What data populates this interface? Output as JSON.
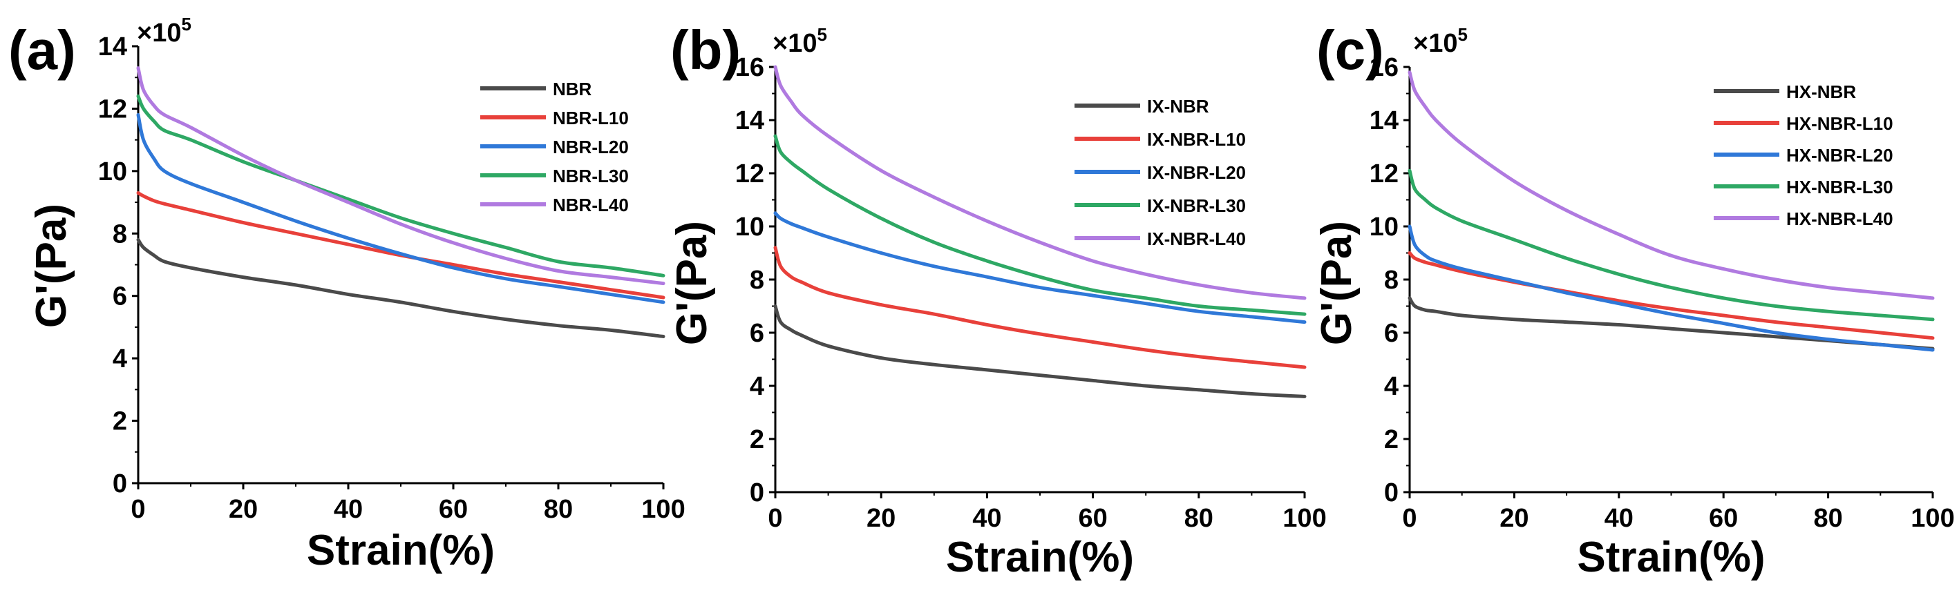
{
  "chart_data": [
    {
      "type": "line",
      "panel_label": "(a)",
      "multiplier": "×10",
      "multiplier_exp": "5",
      "xlabel": "Strain(%)",
      "ylabel": "G'(Pa)",
      "xlim": [
        0,
        100
      ],
      "ylim": [
        0,
        14
      ],
      "xticks": [
        0,
        20,
        40,
        60,
        80,
        100
      ],
      "yticks": [
        0,
        2,
        4,
        6,
        8,
        10,
        12,
        14
      ],
      "legend_position": "top-right",
      "series": [
        {
          "name": "NBR",
          "color": "#4a4a4a",
          "x": [
            0,
            1,
            3,
            5,
            10,
            20,
            30,
            40,
            50,
            60,
            70,
            80,
            90,
            100
          ],
          "y": [
            7.8,
            7.55,
            7.3,
            7.1,
            6.9,
            6.6,
            6.35,
            6.05,
            5.8,
            5.5,
            5.25,
            5.05,
            4.9,
            4.7
          ]
        },
        {
          "name": "NBR-L10",
          "color": "#e8403a",
          "x": [
            0,
            1,
            3,
            5,
            10,
            20,
            30,
            40,
            50,
            60,
            70,
            80,
            90,
            100
          ],
          "y": [
            9.3,
            9.2,
            9.05,
            8.95,
            8.75,
            8.35,
            8.0,
            7.65,
            7.3,
            7.0,
            6.7,
            6.45,
            6.2,
            5.95
          ]
        },
        {
          "name": "NBR-L20",
          "color": "#2f78d8",
          "x": [
            0,
            1,
            3,
            5,
            10,
            20,
            30,
            40,
            50,
            60,
            70,
            80,
            90,
            100
          ],
          "y": [
            11.8,
            11.0,
            10.4,
            10.0,
            9.6,
            9.0,
            8.4,
            7.85,
            7.35,
            6.9,
            6.55,
            6.3,
            6.05,
            5.8
          ]
        },
        {
          "name": "NBR-L30",
          "color": "#2ea864",
          "x": [
            0,
            1,
            3,
            5,
            10,
            20,
            30,
            40,
            50,
            60,
            70,
            80,
            90,
            100
          ],
          "y": [
            12.4,
            12.0,
            11.6,
            11.3,
            11.0,
            10.3,
            9.7,
            9.1,
            8.5,
            8.0,
            7.55,
            7.1,
            6.9,
            6.65
          ]
        },
        {
          "name": "NBR-L40",
          "color": "#b07ae0",
          "x": [
            0,
            1,
            3,
            5,
            10,
            20,
            30,
            40,
            50,
            60,
            70,
            80,
            90,
            100
          ],
          "y": [
            13.3,
            12.6,
            12.1,
            11.8,
            11.4,
            10.5,
            9.7,
            9.0,
            8.3,
            7.7,
            7.2,
            6.8,
            6.6,
            6.4
          ]
        }
      ]
    },
    {
      "type": "line",
      "panel_label": "(b)",
      "multiplier": "×10",
      "multiplier_exp": "5",
      "xlabel": "Strain(%)",
      "ylabel": "G'(Pa)",
      "xlim": [
        0,
        100
      ],
      "ylim": [
        0,
        16
      ],
      "xticks": [
        0,
        20,
        40,
        60,
        80,
        100
      ],
      "yticks": [
        0,
        2,
        4,
        6,
        8,
        10,
        12,
        14,
        16
      ],
      "legend_position": "top-right",
      "series": [
        {
          "name": "IX-NBR",
          "color": "#4a4a4a",
          "x": [
            0,
            1,
            3,
            5,
            10,
            20,
            30,
            40,
            50,
            60,
            70,
            80,
            90,
            100
          ],
          "y": [
            7.0,
            6.4,
            6.1,
            5.9,
            5.5,
            5.05,
            4.8,
            4.6,
            4.4,
            4.2,
            4.0,
            3.85,
            3.7,
            3.6
          ]
        },
        {
          "name": "IX-NBR-L10",
          "color": "#e8403a",
          "x": [
            0,
            1,
            3,
            5,
            10,
            20,
            30,
            40,
            50,
            60,
            70,
            80,
            90,
            100
          ],
          "y": [
            9.2,
            8.5,
            8.1,
            7.9,
            7.5,
            7.05,
            6.7,
            6.3,
            5.95,
            5.65,
            5.35,
            5.1,
            4.9,
            4.7
          ]
        },
        {
          "name": "IX-NBR-L20",
          "color": "#2f78d8",
          "x": [
            0,
            1,
            3,
            5,
            10,
            20,
            30,
            40,
            50,
            60,
            70,
            80,
            90,
            100
          ],
          "y": [
            10.5,
            10.3,
            10.1,
            9.95,
            9.6,
            9.0,
            8.5,
            8.1,
            7.7,
            7.4,
            7.1,
            6.8,
            6.6,
            6.4
          ]
        },
        {
          "name": "IX-NBR-L30",
          "color": "#2ea864",
          "x": [
            0,
            1,
            3,
            5,
            10,
            20,
            30,
            40,
            50,
            60,
            70,
            80,
            90,
            100
          ],
          "y": [
            13.4,
            12.8,
            12.4,
            12.1,
            11.4,
            10.3,
            9.4,
            8.7,
            8.1,
            7.6,
            7.3,
            7.0,
            6.85,
            6.7
          ]
        },
        {
          "name": "IX-NBR-L40",
          "color": "#b07ae0",
          "x": [
            0,
            1,
            3,
            5,
            10,
            20,
            30,
            40,
            50,
            60,
            70,
            80,
            90,
            100
          ],
          "y": [
            16.0,
            15.3,
            14.7,
            14.2,
            13.4,
            12.1,
            11.1,
            10.2,
            9.4,
            8.7,
            8.2,
            7.8,
            7.5,
            7.3
          ]
        }
      ]
    },
    {
      "type": "line",
      "panel_label": "(c)",
      "multiplier": "×10",
      "multiplier_exp": "5",
      "xlabel": "Strain(%)",
      "ylabel": "G'(Pa)",
      "xlim": [
        0,
        100
      ],
      "ylim": [
        0,
        16
      ],
      "xticks": [
        0,
        20,
        40,
        60,
        80,
        100
      ],
      "yticks": [
        0,
        2,
        4,
        6,
        8,
        10,
        12,
        14,
        16
      ],
      "legend_position": "top-right",
      "series": [
        {
          "name": "HX-NBR",
          "color": "#4a4a4a",
          "x": [
            0,
            1,
            3,
            5,
            10,
            20,
            30,
            40,
            50,
            60,
            70,
            80,
            90,
            100
          ],
          "y": [
            7.3,
            7.0,
            6.85,
            6.8,
            6.65,
            6.5,
            6.4,
            6.3,
            6.15,
            6.0,
            5.85,
            5.7,
            5.55,
            5.4
          ]
        },
        {
          "name": "HX-NBR-L10",
          "color": "#e8403a",
          "x": [
            0,
            1,
            3,
            5,
            10,
            20,
            30,
            40,
            50,
            60,
            70,
            80,
            90,
            100
          ],
          "y": [
            9.0,
            8.8,
            8.65,
            8.55,
            8.3,
            7.9,
            7.55,
            7.2,
            6.9,
            6.65,
            6.4,
            6.2,
            6.0,
            5.8
          ]
        },
        {
          "name": "HX-NBR-L20",
          "color": "#2f78d8",
          "x": [
            0,
            1,
            3,
            5,
            10,
            20,
            30,
            40,
            50,
            60,
            70,
            80,
            90,
            100
          ],
          "y": [
            10.0,
            9.3,
            8.9,
            8.7,
            8.4,
            7.95,
            7.5,
            7.1,
            6.7,
            6.35,
            6.0,
            5.75,
            5.55,
            5.35
          ]
        },
        {
          "name": "HX-NBR-L30",
          "color": "#2ea864",
          "x": [
            0,
            1,
            3,
            5,
            10,
            20,
            30,
            40,
            50,
            60,
            70,
            80,
            90,
            100
          ],
          "y": [
            12.1,
            11.4,
            11.0,
            10.7,
            10.2,
            9.5,
            8.8,
            8.2,
            7.7,
            7.3,
            7.0,
            6.8,
            6.65,
            6.5
          ]
        },
        {
          "name": "HX-NBR-L40",
          "color": "#b07ae0",
          "x": [
            0,
            1,
            3,
            5,
            10,
            20,
            30,
            40,
            50,
            60,
            70,
            80,
            90,
            100
          ],
          "y": [
            15.8,
            15.1,
            14.5,
            14.0,
            13.1,
            11.7,
            10.6,
            9.7,
            8.9,
            8.4,
            8.0,
            7.7,
            7.5,
            7.3
          ]
        }
      ]
    }
  ]
}
